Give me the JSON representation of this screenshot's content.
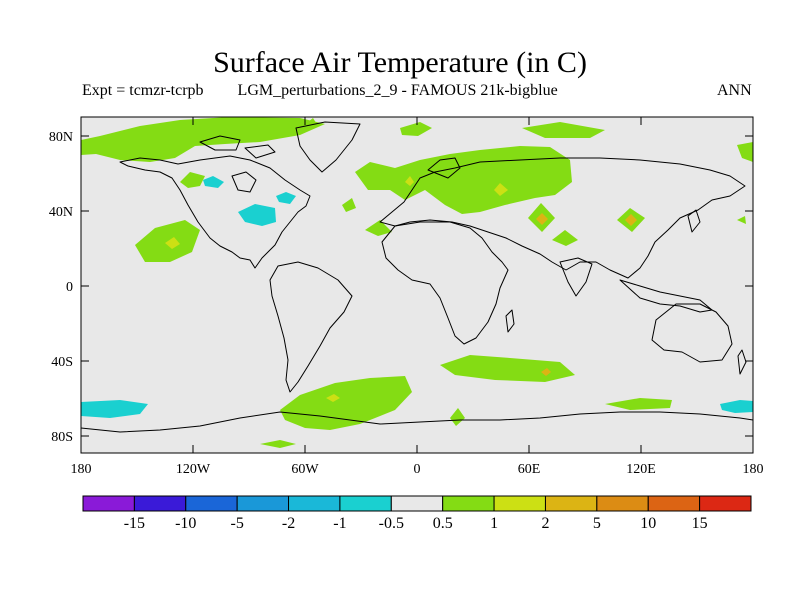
{
  "header": {
    "title": "Surface Air Temperature (in C)",
    "expt": "Expt = tcmzr-tcrpb",
    "description": "LGM_perturbations_2_9 - FAMOUS 21k-bigblue",
    "season": "ANN"
  },
  "map": {
    "lat_ticks": [
      "80N",
      "40N",
      "0",
      "40S",
      "80S"
    ],
    "lon_ticks": [
      "180",
      "120W",
      "60W",
      "0",
      "60E",
      "120E",
      "180"
    ],
    "background_color": "#e8e8e8"
  },
  "colorbar": {
    "labels": [
      "-15",
      "-10",
      "-5",
      "-2",
      "-1",
      "-0.5",
      "0.5",
      "1",
      "2",
      "5",
      "10",
      "15"
    ],
    "colors": [
      "#8a1ad8",
      "#3a1ad8",
      "#1a66d8",
      "#1a98d8",
      "#1ab8d8",
      "#1ad0d0",
      "#e8e8e8",
      "#84dc14",
      "#cce014",
      "#dcb414",
      "#dc8c14",
      "#dc6414",
      "#dc2814"
    ]
  }
}
